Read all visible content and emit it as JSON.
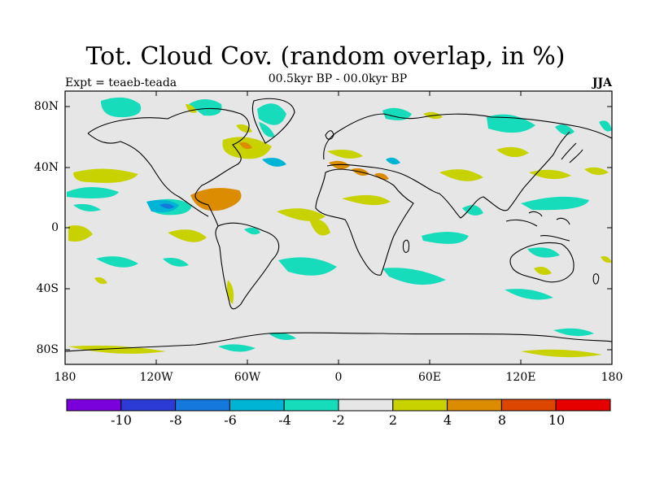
{
  "title": "Tot. Cloud Cov. (random overlap, in %)",
  "subtitle": "00.5kyr BP - 00.0kyr BP",
  "experiment": "Expt = teaeb-teada",
  "season": "JJA",
  "axes": {
    "lat_labels": [
      "80N",
      "40N",
      "0",
      "40S",
      "80S"
    ],
    "lon_labels": [
      "180",
      "120W",
      "60W",
      "0",
      "60E",
      "120E",
      "180"
    ]
  },
  "colorbar": {
    "colors": [
      "#7a00dc",
      "#2c3bd6",
      "#1478dc",
      "#00b4d6",
      "#16dcbc",
      "#e6e6e6",
      "#c8d200",
      "#dc8c00",
      "#dc4600",
      "#e60000"
    ],
    "labels": [
      "-10",
      "-8",
      "-6",
      "-4",
      "-2",
      "2",
      "4",
      "8",
      "10"
    ]
  },
  "colors": {
    "background_no_change": "#e6e6e6",
    "coastline": "#000000"
  }
}
